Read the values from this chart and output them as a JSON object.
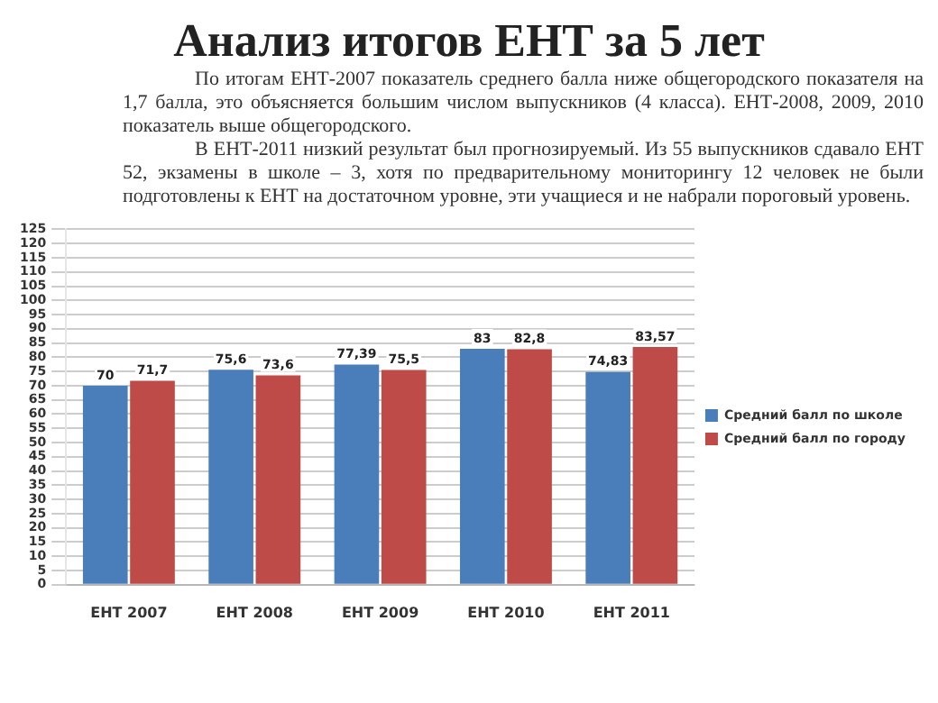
{
  "chart_data": {
    "type": "bar",
    "title": "Анализ итогов ЕНТ за 5 лет",
    "annotations": [
      "По итогам ЕНТ-2007 показатель среднего балла ниже общегородского показателя на 1,7 балла, это объясняется большим числом выпускников (4 класса). ЕНТ-2008, 2009, 2010 показатель выше общегородского.",
      "В ЕНТ-2011 низкий результат был прогнозируемый. Из 55 выпускников сдавало ЕНТ 52, экзамены в школе – 3, хотя по предварительному мониторингу 12 человек не были подготовлены к ЕНТ на достаточном уровне, эти учащиеся и не набрали пороговый уровень."
    ],
    "categories": [
      "ЕНТ 2007",
      "ЕНТ 2008",
      "ЕНТ 2009",
      "ЕНТ 2010",
      "ЕНТ 2011"
    ],
    "series": [
      {
        "name": "Средний балл по школе",
        "color": "#4a7ebb",
        "values": [
          70,
          75.6,
          77.39,
          83,
          74.83
        ],
        "value_labels": [
          "70",
          "75,6",
          "77,39",
          "83",
          "74,83"
        ]
      },
      {
        "name": "Средний балл по городу",
        "color": "#be4b48",
        "values": [
          71.7,
          73.6,
          75.5,
          82.8,
          83.57
        ],
        "value_labels": [
          "71,7",
          "73,6",
          "75,5",
          "82,8",
          "83,57"
        ]
      }
    ],
    "ylim": [
      0,
      125
    ],
    "yticks": [
      0,
      5,
      10,
      15,
      20,
      25,
      30,
      35,
      40,
      45,
      50,
      55,
      60,
      65,
      70,
      75,
      80,
      85,
      90,
      95,
      100,
      105,
      110,
      115,
      120,
      125
    ],
    "grid": "y",
    "legend": "right"
  }
}
